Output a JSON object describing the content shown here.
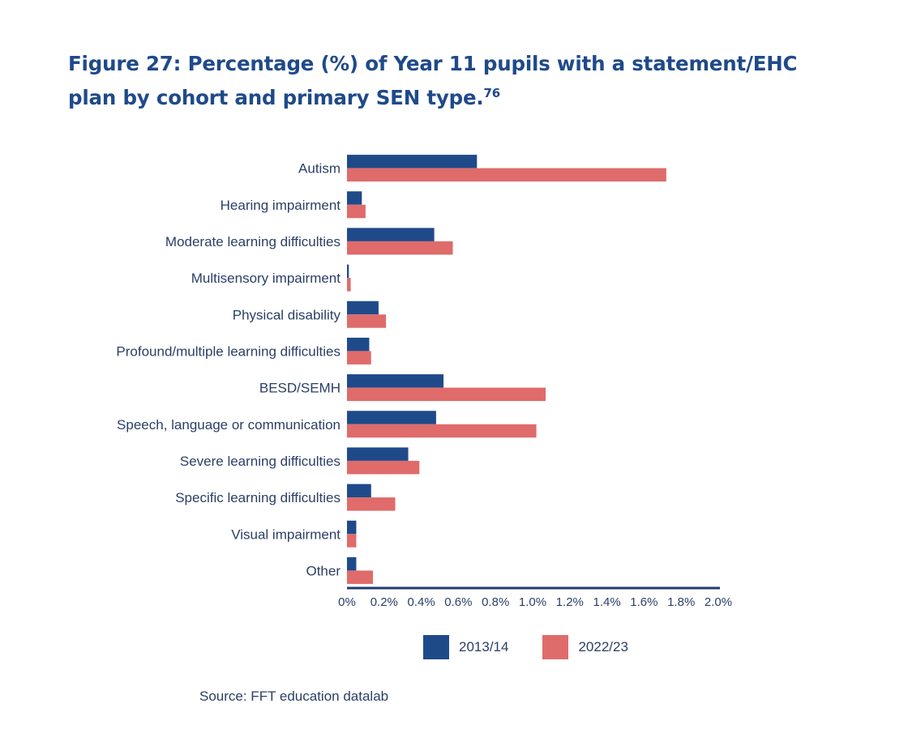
{
  "figure": {
    "title": "Figure 27: Percentage (%) of Year 11 pupils with a statement/EHC plan by cohort and primary SEN type.",
    "footnote": "76",
    "source": "Source: FFT education datalab"
  },
  "chart_data": {
    "type": "bar",
    "orientation": "horizontal",
    "title": "Percentage (%) of Year 11 pupils with a statement/EHC plan by cohort and primary SEN type",
    "xlabel": "",
    "ylabel": "",
    "xlim": [
      0,
      2.0
    ],
    "categories": [
      "Autism",
      "Hearing impairment",
      "Moderate learning difficulties",
      "Multisensory impairment",
      "Physical disability",
      "Profound/multiple learning difficulties",
      "BESD/SEMH",
      "Speech, language or communication",
      "Severe learning difficulties",
      "Specific learning difficulties",
      "Visual impairment",
      "Other"
    ],
    "series": [
      {
        "name": "2013/14",
        "color": "#1f4a8a",
        "values": [
          0.7,
          0.08,
          0.47,
          0.01,
          0.17,
          0.12,
          0.52,
          0.48,
          0.33,
          0.13,
          0.05,
          0.05
        ]
      },
      {
        "name": "2022/23",
        "color": "#e06b6b",
        "values": [
          1.72,
          0.1,
          0.57,
          0.02,
          0.21,
          0.13,
          1.07,
          1.02,
          0.39,
          0.26,
          0.05,
          0.14
        ]
      }
    ],
    "ticks": [
      "0%",
      "0.2%",
      "0.4%",
      "0.6%",
      "0.8%",
      "1.0%",
      "1.2%",
      "1.4%",
      "1.6%",
      "1.8%",
      "2.0%"
    ],
    "legend_position": "bottom"
  }
}
